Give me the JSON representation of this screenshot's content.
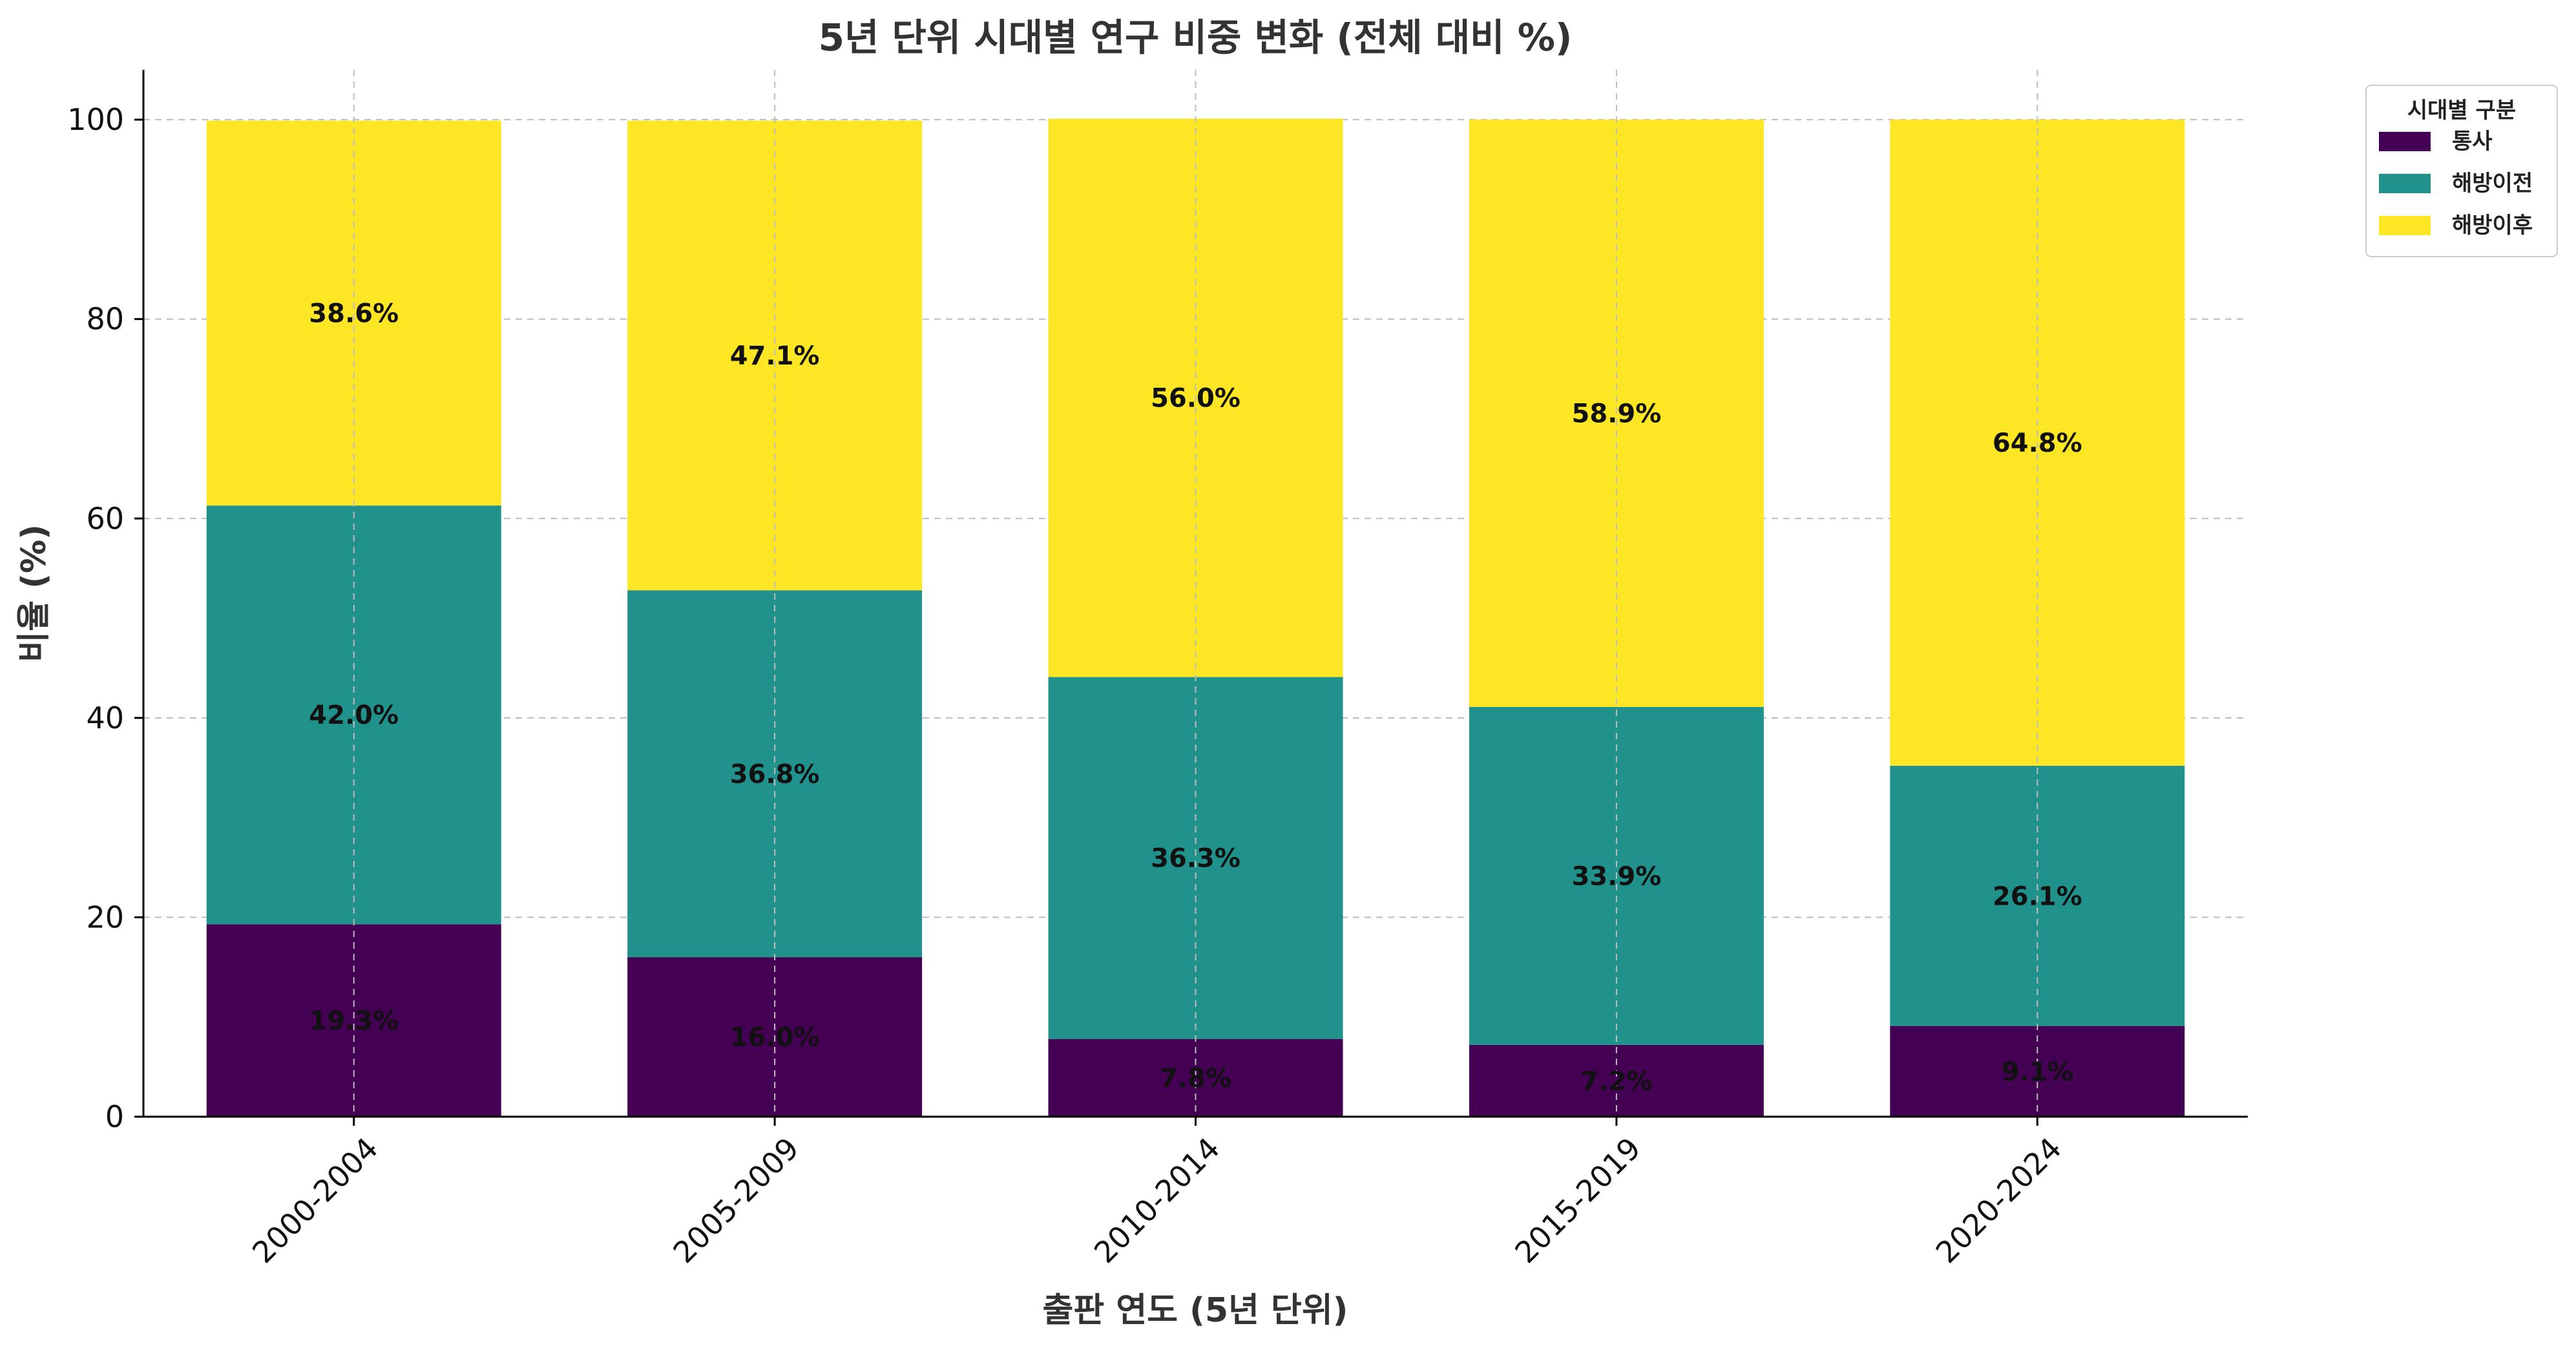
{
  "chart_data": {
    "type": "bar",
    "stacked": true,
    "title": "5년 단위 시대별 연구 비중 변화 (전체 대비 %)",
    "xlabel": "출판 연도 (5년 단위)",
    "ylabel": "비율 (%)",
    "ylim": [
      0,
      105
    ],
    "yticks": [
      "0",
      "20",
      "40",
      "60",
      "80",
      "100"
    ],
    "grid": true,
    "legend_title": "시대별 구분",
    "legend_position": "upper-right-outside",
    "categories": [
      "2000-2004",
      "2005-2009",
      "2010-2014",
      "2015-2019",
      "2020-2024"
    ],
    "series": [
      {
        "name": "통사",
        "color": "#440154",
        "values": [
          19.3,
          16.0,
          7.8,
          7.2,
          9.1
        ],
        "labels": [
          "19.3%",
          "16.0%",
          "7.8%",
          "7.2%",
          "9.1%"
        ]
      },
      {
        "name": "해방이전",
        "color": "#21918c",
        "values": [
          42.0,
          36.8,
          36.3,
          33.9,
          26.1
        ],
        "labels": [
          "42.0%",
          "36.8%",
          "36.3%",
          "33.9%",
          "26.1%"
        ]
      },
      {
        "name": "해방이후",
        "color": "#fde725",
        "values": [
          38.6,
          47.1,
          56.0,
          58.9,
          64.8
        ],
        "labels": [
          "38.6%",
          "47.1%",
          "56.0%",
          "58.9%",
          "64.8%"
        ]
      }
    ]
  }
}
